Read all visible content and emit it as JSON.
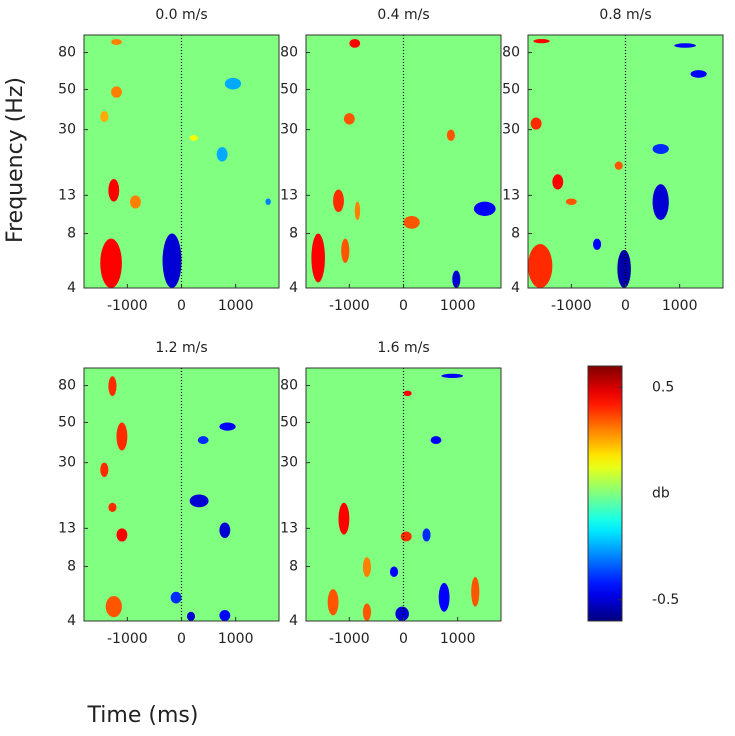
{
  "chart_data": {
    "type": "heatmap",
    "xlabel": "Time (ms)",
    "ylabel": "Frequency (Hz)",
    "xlim": [
      -1800,
      1800
    ],
    "xticks": [
      -1000,
      0,
      1000
    ],
    "ylim": [
      4,
      100
    ],
    "yticks": [
      4,
      8,
      13,
      30,
      50,
      80
    ],
    "log_y": true,
    "colormap": "jet",
    "clim": [
      -0.6,
      0.6
    ],
    "cticks": [
      -0.5,
      0.5
    ],
    "colorbar_label": "db",
    "panels": [
      {
        "title": "0.0 m/s",
        "blobs": [
          {
            "t": [
              -1500,
              -1100
            ],
            "f": [
              4,
              7.5
            ],
            "v": 0.45
          },
          {
            "t": [
              -1350,
              -1150
            ],
            "f": [
              12,
              16
            ],
            "v": 0.45
          },
          {
            "t": [
              -350,
              0
            ],
            "f": [
              4,
              8
            ],
            "v": -0.5
          },
          {
            "t": [
              -950,
              -750
            ],
            "f": [
              11,
              13
            ],
            "v": 0.3
          },
          {
            "t": [
              -1300,
              -1100
            ],
            "f": [
              45,
              52
            ],
            "v": 0.3
          },
          {
            "t": [
              -1500,
              -1350
            ],
            "f": [
              33,
              38
            ],
            "v": 0.25
          },
          {
            "t": [
              650,
              850
            ],
            "f": [
              20,
              24
            ],
            "v": -0.25
          },
          {
            "t": [
              800,
              1100
            ],
            "f": [
              50,
              58
            ],
            "v": -0.25
          },
          {
            "t": [
              -1300,
              -1100
            ],
            "f": [
              88,
              95
            ],
            "v": 0.3
          },
          {
            "t": [
              1550,
              1650
            ],
            "f": [
              11.5,
              12.5
            ],
            "v": -0.3
          },
          {
            "t": [
              150,
              300
            ],
            "f": [
              26,
              28
            ],
            "v": 0.15
          }
        ]
      },
      {
        "title": "0.4 m/s",
        "blobs": [
          {
            "t": [
              -1700,
              -1450
            ],
            "f": [
              4.3,
              8
            ],
            "v": 0.45
          },
          {
            "t": [
              -1150,
              -1000
            ],
            "f": [
              5.5,
              7.5
            ],
            "v": 0.35
          },
          {
            "t": [
              -1300,
              -1100
            ],
            "f": [
              10.5,
              14
            ],
            "v": 0.4
          },
          {
            "t": [
              -900,
              -800
            ],
            "f": [
              9.5,
              12
            ],
            "v": 0.3
          },
          {
            "t": [
              900,
              1050
            ],
            "f": [
              4,
              5
            ],
            "v": -0.5
          },
          {
            "t": [
              0,
              300
            ],
            "f": [
              8.5,
              10
            ],
            "v": 0.35
          },
          {
            "t": [
              1300,
              1700
            ],
            "f": [
              10,
              12
            ],
            "v": -0.45
          },
          {
            "t": [
              -1000,
              -800
            ],
            "f": [
              85,
              95
            ],
            "v": 0.45
          },
          {
            "t": [
              -1100,
              -900
            ],
            "f": [
              32,
              37
            ],
            "v": 0.35
          },
          {
            "t": [
              800,
              950
            ],
            "f": [
              26,
              30
            ],
            "v": 0.35
          }
        ]
      },
      {
        "title": "0.8 m/s",
        "blobs": [
          {
            "t": [
              -1800,
              -1350
            ],
            "f": [
              4,
              7
            ],
            "v": 0.4
          },
          {
            "t": [
              -150,
              100
            ],
            "f": [
              4,
              6.5
            ],
            "v": -0.55
          },
          {
            "t": [
              -1350,
              -1150
            ],
            "f": [
              14,
              17
            ],
            "v": 0.45
          },
          {
            "t": [
              -1100,
              -900
            ],
            "f": [
              11.5,
              12.5
            ],
            "v": 0.35
          },
          {
            "t": [
              500,
              800
            ],
            "f": [
              9.5,
              15
            ],
            "v": -0.5
          },
          {
            "t": [
              -600,
              -450
            ],
            "f": [
              6.5,
              7.5
            ],
            "v": -0.45
          },
          {
            "t": [
              900,
              1300
            ],
            "f": [
              85,
              90
            ],
            "v": -0.45
          },
          {
            "t": [
              -1700,
              -1400
            ],
            "f": [
              90,
              95
            ],
            "v": 0.45
          },
          {
            "t": [
              500,
              800
            ],
            "f": [
              22,
              25
            ],
            "v": -0.4
          },
          {
            "t": [
              -1750,
              -1550
            ],
            "f": [
              30,
              35
            ],
            "v": 0.4
          },
          {
            "t": [
              1200,
              1500
            ],
            "f": [
              58,
              64
            ],
            "v": -0.45
          },
          {
            "t": [
              -200,
              -50
            ],
            "f": [
              18,
              20
            ],
            "v": 0.35
          }
        ]
      },
      {
        "title": "1.2 m/s",
        "blobs": [
          {
            "t": [
              -1350,
              -1200
            ],
            "f": [
              70,
              90
            ],
            "v": 0.4
          },
          {
            "t": [
              -1200,
              -1000
            ],
            "f": [
              35,
              50
            ],
            "v": 0.4
          },
          {
            "t": [
              -1500,
              -1350
            ],
            "f": [
              25,
              30
            ],
            "v": 0.4
          },
          {
            "t": [
              -1400,
              -1100
            ],
            "f": [
              4.2,
              5.5
            ],
            "v": 0.35
          },
          {
            "t": [
              -200,
              0
            ],
            "f": [
              5,
              5.8
            ],
            "v": -0.4
          },
          {
            "t": [
              100,
              250
            ],
            "f": [
              4,
              4.5
            ],
            "v": -0.5
          },
          {
            "t": [
              700,
              900
            ],
            "f": [
              4,
              4.6
            ],
            "v": -0.45
          },
          {
            "t": [
              150,
              500
            ],
            "f": [
              17,
              20
            ],
            "v": -0.5
          },
          {
            "t": [
              700,
              900
            ],
            "f": [
              11.5,
              14
            ],
            "v": -0.5
          },
          {
            "t": [
              -1350,
              -1200
            ],
            "f": [
              16,
              18
            ],
            "v": 0.4
          },
          {
            "t": [
              -1200,
              -1000
            ],
            "f": [
              11,
              13
            ],
            "v": 0.45
          },
          {
            "t": [
              700,
              1000
            ],
            "f": [
              45,
              50
            ],
            "v": -0.45
          },
          {
            "t": [
              300,
              500
            ],
            "f": [
              38,
              42
            ],
            "v": -0.4
          }
        ]
      },
      {
        "title": "1.6 m/s",
        "blobs": [
          {
            "t": [
              -1200,
              -1000
            ],
            "f": [
              12,
              18
            ],
            "v": 0.45
          },
          {
            "t": [
              -1400,
              -1200
            ],
            "f": [
              4.3,
              6
            ],
            "v": 0.35
          },
          {
            "t": [
              -750,
              -600
            ],
            "f": [
              4,
              5
            ],
            "v": 0.35
          },
          {
            "t": [
              -750,
              -600
            ],
            "f": [
              7,
              9
            ],
            "v": 0.3
          },
          {
            "t": [
              -150,
              100
            ],
            "f": [
              4,
              4.8
            ],
            "v": -0.5
          },
          {
            "t": [
              650,
              850
            ],
            "f": [
              4.5,
              6.5
            ],
            "v": -0.45
          },
          {
            "t": [
              1250,
              1400
            ],
            "f": [
              4.8,
              7
            ],
            "v": 0.35
          },
          {
            "t": [
              -250,
              -100
            ],
            "f": [
              7,
              8
            ],
            "v": -0.45
          },
          {
            "t": [
              350,
              500
            ],
            "f": [
              11,
              13
            ],
            "v": -0.4
          },
          {
            "t": [
              -50,
              150
            ],
            "f": [
              11,
              12.5
            ],
            "v": 0.4
          },
          {
            "t": [
              500,
              700
            ],
            "f": [
              38,
              42
            ],
            "v": -0.45
          },
          {
            "t": [
              700,
              1100
            ],
            "f": [
              88,
              93
            ],
            "v": -0.45
          },
          {
            "t": [
              0,
              150
            ],
            "f": [
              70,
              75
            ],
            "v": 0.45
          }
        ]
      }
    ]
  }
}
